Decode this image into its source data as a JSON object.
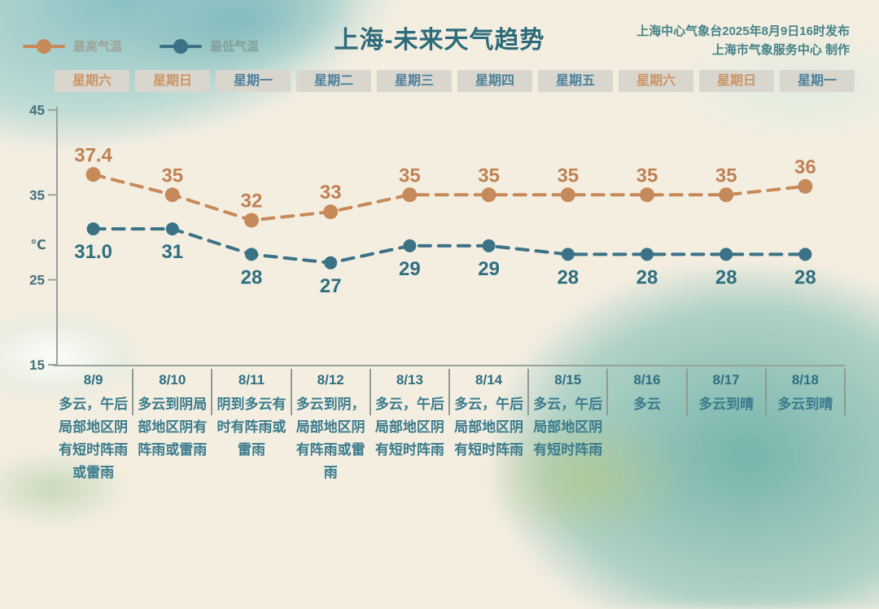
{
  "header": {
    "title": "上海-未来天气趋势",
    "attribution_line1": "上海中心气象台2025年8月9日16时发布",
    "attribution_line2": "上海市气象服务中心 制作",
    "legend": [
      {
        "label": "最高气温",
        "color": "#c6895a"
      },
      {
        "label": "最低气温",
        "color": "#3c7285"
      }
    ]
  },
  "weekdays": [
    {
      "label": "星期六",
      "weekend": true
    },
    {
      "label": "星期日",
      "weekend": true
    },
    {
      "label": "星期一",
      "weekend": false
    },
    {
      "label": "星期二",
      "weekend": false
    },
    {
      "label": "星期三",
      "weekend": false
    },
    {
      "label": "星期四",
      "weekend": false
    },
    {
      "label": "星期五",
      "weekend": false
    },
    {
      "label": "星期六",
      "weekend": true
    },
    {
      "label": "星期日",
      "weekend": true
    },
    {
      "label": "星期一",
      "weekend": false
    }
  ],
  "chart_data": {
    "type": "line",
    "x": [
      "8/9",
      "8/10",
      "8/11",
      "8/12",
      "8/13",
      "8/14",
      "8/15",
      "8/16",
      "8/17",
      "8/18"
    ],
    "series": [
      {
        "name": "最高气温",
        "color": "#c6895a",
        "label_color": "#bf8153",
        "values": [
          37.4,
          35,
          32,
          33,
          35,
          35,
          35,
          35,
          35,
          36
        ],
        "value_labels": [
          "37.4",
          "35",
          "32",
          "33",
          "35",
          "35",
          "35",
          "35",
          "35",
          "36"
        ],
        "label_position": "above"
      },
      {
        "name": "最低气温",
        "color": "#3c7285",
        "label_color": "#2f6f80",
        "values": [
          31.0,
          31,
          28,
          27,
          29,
          29,
          28,
          28,
          28,
          28
        ],
        "value_labels": [
          "31.0",
          "31",
          "28",
          "27",
          "29",
          "29",
          "28",
          "28",
          "28",
          "28"
        ],
        "label_position": "below"
      }
    ],
    "title": "上海-未来天气趋势",
    "xlabel": "",
    "ylabel": "℃",
    "yticks": [
      45,
      35,
      25,
      15
    ],
    "ylim": [
      15,
      45
    ],
    "line_style": "dashed",
    "grid": false,
    "legend_position": "top-left",
    "axis_color": "#9aa29b",
    "tick_label_color": "#44707d"
  },
  "table": {
    "columns": [
      {
        "date": "8/9",
        "weather": "多云，午后局部地区阴有短时阵雨或雷雨"
      },
      {
        "date": "8/10",
        "weather": "多云到阴局部地区阴有阵雨或雷雨"
      },
      {
        "date": "8/11",
        "weather": "阴到多云有时有阵雨或雷雨"
      },
      {
        "date": "8/12",
        "weather": "多云到阴，局部地区阴有阵雨或雷雨"
      },
      {
        "date": "8/13",
        "weather": "多云，午后局部地区阴有短时阵雨"
      },
      {
        "date": "8/14",
        "weather": "多云，午后局部地区阴有短时阵雨"
      },
      {
        "date": "8/15",
        "weather": "多云，午后局部地区阴有短时阵雨"
      },
      {
        "date": "8/16",
        "weather": "多云"
      },
      {
        "date": "8/17",
        "weather": "多云到晴"
      },
      {
        "date": "8/18",
        "weather": "多云到晴"
      }
    ]
  }
}
